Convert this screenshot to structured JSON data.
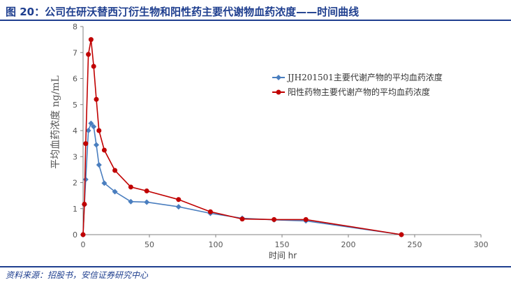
{
  "figure": {
    "title": "图 20：公司在研沃替西汀衍生物和阳性药主要代谢物血药浓度——时间曲线",
    "source": "资料来源：招股书，安信证券研究中心"
  },
  "colors": {
    "series1": "#4a7ebf",
    "series2": "#c00000",
    "axis": "#808080",
    "title": "#1f3f8f"
  },
  "chart_data": {
    "type": "line",
    "xlabel": "时间 hr",
    "ylabel": "平均血药浓度 ng/mL",
    "xlim": [
      0,
      300
    ],
    "ylim": [
      0,
      8
    ],
    "xticks": [
      0,
      50,
      100,
      150,
      200,
      250,
      300
    ],
    "yticks": [
      0,
      1,
      2,
      3,
      4,
      5,
      6,
      7,
      8
    ],
    "grid": false,
    "legend_position": "right",
    "series": [
      {
        "name": "JJH201501主要代谢产物的平均血药浓度",
        "marker": "diamond",
        "x": [
          0,
          1,
          2,
          4,
          6,
          8,
          10,
          12,
          16,
          24,
          36,
          48,
          72,
          96,
          120,
          144,
          168,
          240
        ],
        "y": [
          0,
          1.15,
          2.12,
          4.0,
          4.28,
          4.15,
          3.45,
          2.68,
          1.98,
          1.65,
          1.27,
          1.25,
          1.07,
          0.82,
          0.63,
          0.57,
          0.53,
          0
        ]
      },
      {
        "name": "阳性药物主要代谢产物的平均血药浓度",
        "marker": "circle",
        "x": [
          0,
          1,
          2,
          4,
          6,
          8,
          10,
          12,
          16,
          24,
          36,
          48,
          72,
          96,
          120,
          144,
          168,
          240
        ],
        "y": [
          0,
          1.17,
          3.5,
          6.93,
          7.5,
          6.47,
          5.2,
          4.0,
          3.25,
          2.47,
          1.83,
          1.68,
          1.35,
          0.88,
          0.6,
          0.58,
          0.58,
          0
        ]
      }
    ]
  }
}
